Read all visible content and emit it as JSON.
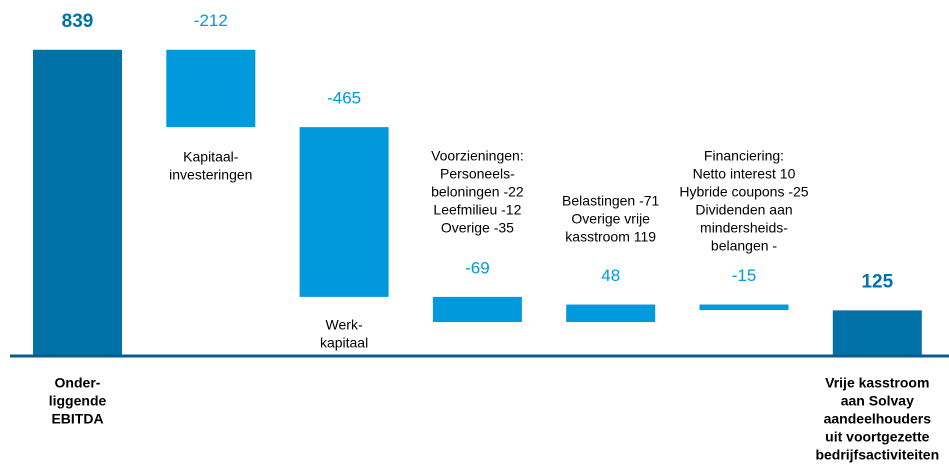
{
  "chart_data": {
    "type": "waterfall",
    "categories": [
      [
        "Onder-",
        "liggende",
        "EBITDA"
      ],
      [
        "Kapitaal-",
        "investeringen"
      ],
      [
        "Werk-",
        "kapitaal"
      ],
      [
        "Voorzieningen:",
        "Personeels-",
        "beloningen -22",
        "Leefmilieu -12",
        "Overige -35"
      ],
      [
        "Belastingen -71",
        "Overige vrije",
        "kasstroom 119"
      ],
      [
        "Financiering:",
        "Netto interest 10",
        "Hybride coupons -25",
        "Dividenden aan",
        "mindersheids-",
        "belangen -"
      ],
      [
        "Vrije kasstroom",
        "aan Solvay",
        "aandeelhouders",
        "uit voortgezette",
        "bedrijfsactiviteiten"
      ]
    ],
    "values": [
      839,
      -212,
      -465,
      -69,
      48,
      -15,
      125
    ],
    "measure": [
      "total",
      "relative",
      "relative",
      "relative",
      "relative",
      "relative",
      "total"
    ],
    "total_color": "#0072a8",
    "relative_color": "#0099dc",
    "axis_color": "#0a5a8a"
  }
}
